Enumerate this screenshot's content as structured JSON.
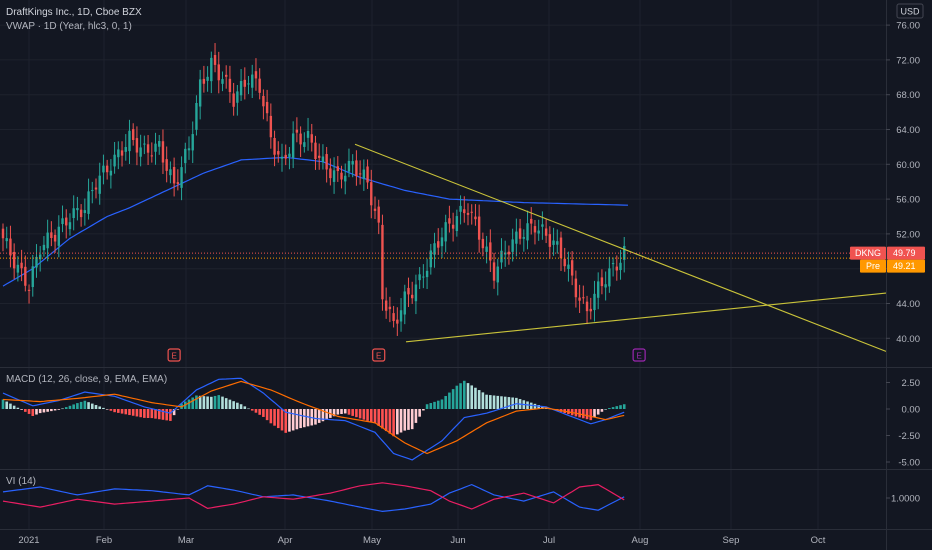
{
  "header": {
    "symbol_line": "DraftKings Inc., 1D, Cboe BZX",
    "vwap_line": "VWAP · 1D (Year, hlc3, 0, 1)",
    "currency": "USD"
  },
  "panes": {
    "macd_label": "MACD (12, 26, close, 9, EMA, EMA)",
    "vi_label": "VI (14)"
  },
  "badges": {
    "last": {
      "label": "DKNG",
      "value": "49.79",
      "color": "#f05350"
    },
    "pre": {
      "label": "Pre",
      "value": "49.21",
      "color": "#ff9800"
    }
  },
  "earnings_markers": [
    "E",
    "E",
    "E"
  ],
  "colors": {
    "background": "#131722",
    "up": "#26a69a",
    "down": "#ef5350",
    "vwap": "#2962ff",
    "trendline": "#c9c33a",
    "macd": "#2962ff",
    "signal": "#ff6d00",
    "vi_plus": "#2962ff",
    "vi_minus": "#e91e63"
  },
  "chart_data": [
    {
      "type": "candlestick",
      "title": "DraftKings Inc., 1D, Cboe BZX",
      "x_axis": {
        "ticks": [
          "2021",
          "Feb",
          "Mar",
          "Apr",
          "May",
          "Jun",
          "Jul",
          "Aug",
          "Sep",
          "Oct"
        ]
      },
      "y_axis": {
        "ticks": [
          "76.00",
          "72.00",
          "68.00",
          "64.00",
          "60.00",
          "56.00",
          "52.00",
          "48.00",
          "44.00",
          "40.00"
        ],
        "range": [
          36.5,
          77.5
        ]
      },
      "price_anchors": [
        [
          0,
          51.5
        ],
        [
          4,
          48
        ],
        [
          7,
          46
        ],
        [
          10,
          50.5
        ],
        [
          14,
          52
        ],
        [
          18,
          54
        ],
        [
          22,
          55
        ],
        [
          25,
          58
        ],
        [
          30,
          60.5
        ],
        [
          34,
          63
        ],
        [
          38,
          61.5
        ],
        [
          42,
          62
        ],
        [
          46,
          57.5
        ],
        [
          50,
          62
        ],
        [
          53,
          69
        ],
        [
          56,
          71.5
        ],
        [
          59,
          70
        ],
        [
          62,
          67.5
        ],
        [
          66,
          70
        ],
        [
          69,
          69
        ],
        [
          72,
          63
        ],
        [
          75,
          60
        ],
        [
          78,
          63
        ],
        [
          82,
          63
        ],
        [
          86,
          60
        ],
        [
          90,
          58.5
        ],
        [
          94,
          60
        ],
        [
          98,
          58
        ],
        [
          101,
          52.5
        ],
        [
          102,
          45
        ],
        [
          105,
          41.5
        ],
        [
          108,
          44.5
        ],
        [
          112,
          46.5
        ],
        [
          115,
          49.5
        ],
        [
          118,
          52
        ],
        [
          122,
          54
        ],
        [
          125,
          55
        ],
        [
          128,
          52
        ],
        [
          132,
          47.5
        ],
        [
          135,
          50
        ],
        [
          139,
          52
        ],
        [
          143,
          53
        ],
        [
          148,
          51
        ],
        [
          151,
          49
        ],
        [
          154,
          45.5
        ],
        [
          157,
          43
        ],
        [
          159,
          45
        ],
        [
          162,
          47
        ],
        [
          165,
          48.5
        ],
        [
          167,
          49.79
        ]
      ],
      "vwap_anchors": [
        [
          0,
          46
        ],
        [
          8,
          48
        ],
        [
          18,
          51.5
        ],
        [
          28,
          54
        ],
        [
          34,
          55
        ],
        [
          44,
          57
        ],
        [
          54,
          59
        ],
        [
          64,
          60.5
        ],
        [
          76,
          60.8
        ],
        [
          86,
          60.3
        ],
        [
          96,
          58.5
        ],
        [
          108,
          57
        ],
        [
          120,
          56
        ],
        [
          140,
          55.6
        ],
        [
          168,
          55.3
        ]
      ],
      "trendlines": [
        {
          "from": [
            "Apr 27",
            62.3
          ],
          "to": [
            "Oct 31",
            38.5
          ]
        },
        {
          "from": [
            "May 10",
            39.6
          ],
          "to": [
            "Oct 31",
            45.2
          ]
        }
      ],
      "last_price": 49.79,
      "premarket_price": 49.21,
      "earnings_bar_indices": [
        46,
        101,
        171
      ]
    },
    {
      "type": "line+histogram",
      "title": "MACD (12, 26, close, 9, EMA, EMA)",
      "y_axis": {
        "ticks": [
          "2.50",
          "0.00",
          "-2.50",
          "-5.00"
        ],
        "range": [
          -5.5,
          3.5
        ]
      },
      "macd_anchors": [
        [
          0,
          1.5
        ],
        [
          8,
          0.3
        ],
        [
          15,
          0.8
        ],
        [
          22,
          1.6
        ],
        [
          30,
          1.2
        ],
        [
          38,
          0.2
        ],
        [
          45,
          -0.4
        ],
        [
          52,
          1.8
        ],
        [
          58,
          2.8
        ],
        [
          64,
          2.9
        ],
        [
          70,
          1.5
        ],
        [
          76,
          -0.3
        ],
        [
          84,
          -0.9
        ],
        [
          92,
          -1.1
        ],
        [
          100,
          -2.2
        ],
        [
          105,
          -4.2
        ],
        [
          110,
          -4.8
        ],
        [
          118,
          -3
        ],
        [
          124,
          -0.8
        ],
        [
          130,
          -0.4
        ],
        [
          138,
          0.5
        ],
        [
          146,
          0.2
        ],
        [
          152,
          -0.6
        ],
        [
          158,
          -1.4
        ],
        [
          162,
          -1
        ],
        [
          167,
          -0.3
        ]
      ],
      "signal_anchors": [
        [
          0,
          0.9
        ],
        [
          10,
          0.7
        ],
        [
          20,
          1
        ],
        [
          30,
          1.4
        ],
        [
          40,
          0.6
        ],
        [
          48,
          0.2
        ],
        [
          56,
          1.7
        ],
        [
          64,
          2.6
        ],
        [
          72,
          1.8
        ],
        [
          80,
          0.6
        ],
        [
          90,
          -0.7
        ],
        [
          100,
          -1.3
        ],
        [
          108,
          -3.2
        ],
        [
          114,
          -4.2
        ],
        [
          122,
          -3
        ],
        [
          130,
          -1.3
        ],
        [
          138,
          -0.2
        ],
        [
          146,
          0.1
        ],
        [
          154,
          -0.4
        ],
        [
          162,
          -1
        ],
        [
          167,
          -0.6
        ]
      ]
    },
    {
      "type": "line",
      "title": "VI (14)",
      "y_axis": {
        "ticks": [
          "1.0000"
        ],
        "range": [
          0.55,
          1.45
        ]
      },
      "vi_plus_anchors": [
        [
          0,
          1.1
        ],
        [
          10,
          1.18
        ],
        [
          20,
          1.05
        ],
        [
          30,
          1.15
        ],
        [
          40,
          1.12
        ],
        [
          50,
          1.05
        ],
        [
          55,
          1.2
        ],
        [
          62,
          1.13
        ],
        [
          70,
          1.02
        ],
        [
          78,
          1.05
        ],
        [
          88,
          0.95
        ],
        [
          96,
          0.85
        ],
        [
          102,
          0.78
        ],
        [
          108,
          0.82
        ],
        [
          115,
          0.9
        ],
        [
          120,
          1.08
        ],
        [
          126,
          1.22
        ],
        [
          132,
          1.05
        ],
        [
          140,
          0.95
        ],
        [
          148,
          1.1
        ],
        [
          155,
          0.85
        ],
        [
          160,
          0.8
        ],
        [
          167,
          1.02
        ]
      ],
      "vi_minus_anchors": [
        [
          0,
          0.95
        ],
        [
          10,
          0.85
        ],
        [
          20,
          0.98
        ],
        [
          30,
          0.9
        ],
        [
          40,
          0.95
        ],
        [
          50,
          1
        ],
        [
          55,
          0.83
        ],
        [
          62,
          0.9
        ],
        [
          70,
          1.02
        ],
        [
          78,
          0.98
        ],
        [
          88,
          1.08
        ],
        [
          96,
          1.2
        ],
        [
          102,
          1.25
        ],
        [
          108,
          1.2
        ],
        [
          115,
          1.12
        ],
        [
          120,
          0.95
        ],
        [
          126,
          0.82
        ],
        [
          132,
          0.98
        ],
        [
          140,
          1.08
        ],
        [
          148,
          0.92
        ],
        [
          155,
          1.18
        ],
        [
          160,
          1.22
        ],
        [
          167,
          0.97
        ]
      ]
    }
  ]
}
